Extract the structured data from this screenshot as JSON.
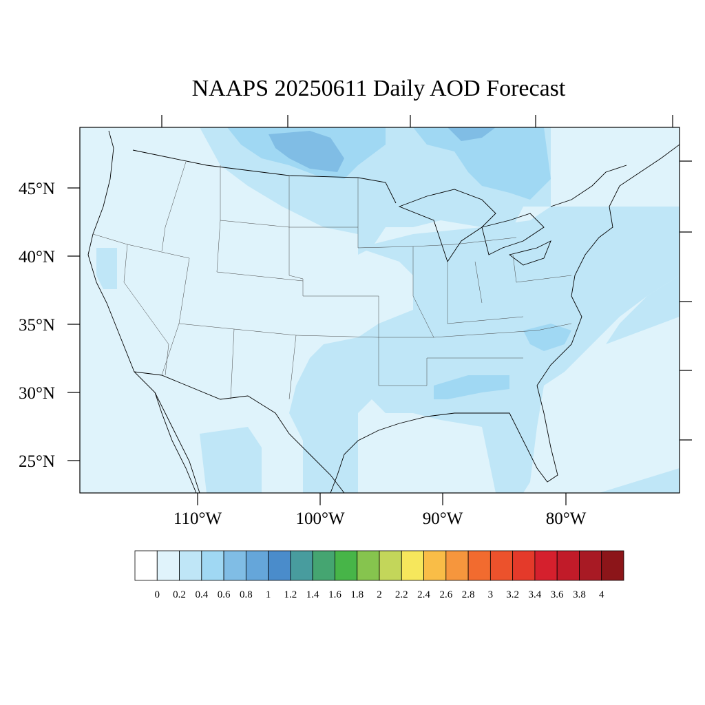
{
  "title": "NAAPS 20250611 Daily AOD Forecast",
  "map": {
    "lat_labels": [
      "45°N",
      "40°N",
      "35°N",
      "30°N",
      "25°N"
    ],
    "lon_labels": [
      "110°W",
      "100°W",
      "90°W",
      "80°W"
    ]
  },
  "colorbar": {
    "labels": [
      "0",
      "0.2",
      "0.4",
      "0.6",
      "0.8",
      "1",
      "1.2",
      "1.4",
      "1.6",
      "1.8",
      "2",
      "2.2",
      "2.4",
      "2.6",
      "2.8",
      "3",
      "3.2",
      "3.4",
      "3.6",
      "3.8",
      "4"
    ],
    "colors": [
      "#ffffff",
      "#e0f3fb",
      "#bfe6f7",
      "#a0d8f3",
      "#80bde5",
      "#65a6da",
      "#4a8ccb",
      "#489c9e",
      "#45a571",
      "#47b548",
      "#86c44e",
      "#c3d65a",
      "#f6e75c",
      "#f9bd47",
      "#f6963d",
      "#f26b2f",
      "#ec522c",
      "#e43a2a",
      "#d5202d",
      "#c11b29",
      "#a81a24",
      "#8c1519"
    ]
  },
  "aod_field": {
    "background_level": "0.2",
    "plumes": [
      {
        "region": "northern plains / canada border",
        "level": "0.4"
      },
      {
        "region": "north dakota / manitoba",
        "level": "0.6"
      },
      {
        "region": "ontario / quebec",
        "level": "0.6"
      },
      {
        "region": "great lakes / ohio valley",
        "level": "0.4"
      },
      {
        "region": "southern plains / gulf coast",
        "level": "0.4"
      },
      {
        "region": "east coast / atlantic",
        "level": "0.4"
      },
      {
        "region": "northern mexico",
        "level": "0.4"
      }
    ]
  }
}
